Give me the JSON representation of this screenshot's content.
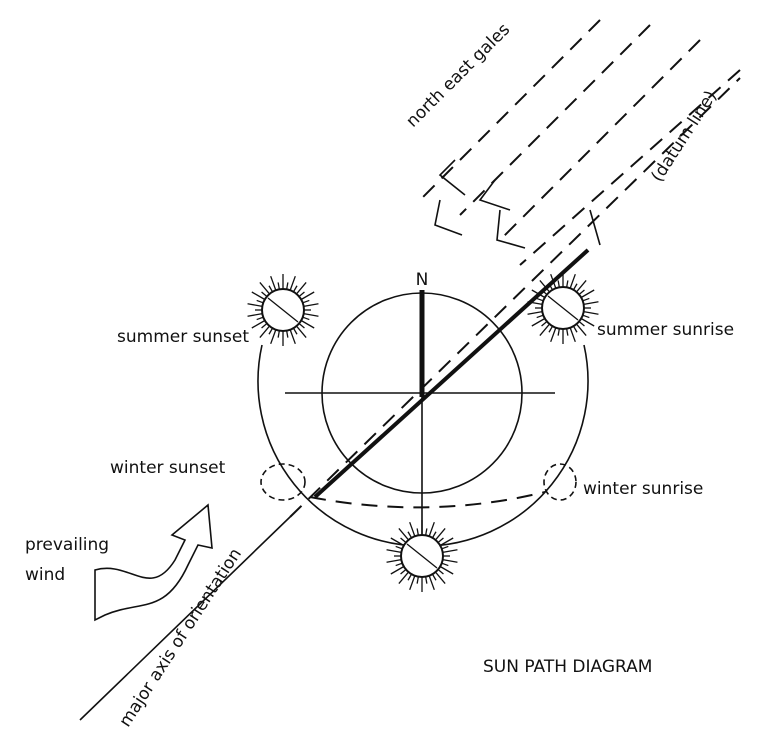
{
  "diagram": {
    "title": "SUN PATH DIAGRAM",
    "labels": {
      "north": "N",
      "gales": "north east gales",
      "datum": "(datum line)",
      "summer_sunset": "summer sunset",
      "summer_sunrise": "summer sunrise",
      "winter_sunset": "winter sunset",
      "winter_sunrise": "winter sunrise",
      "wind_1": "prevailing",
      "wind_2": "wind",
      "axis": "major axis of orientation"
    }
  }
}
